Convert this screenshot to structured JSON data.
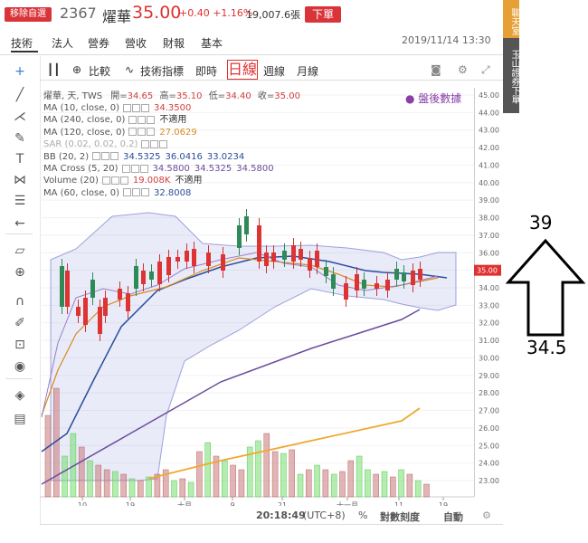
{
  "header": {
    "mode_badge": "移除自選",
    "code": "2367",
    "name": "燿華",
    "price": "35.00",
    "change": "+0.40 +1.16%",
    "volume": "19,007.6張",
    "order_button": "下單",
    "datetime": "2019/11/14 13:30"
  },
  "nav": {
    "tabs": [
      "技術",
      "法人",
      "營券",
      "營收",
      "財報",
      "基本"
    ],
    "active": "技術"
  },
  "toolbar": {
    "compare": "比較",
    "indicators": "技術指標",
    "realtime": "即時",
    "daily": "日線",
    "weekly": "週線",
    "monthly": "月線"
  },
  "legend": {
    "ohlc_label": "燿華, 天, TWS",
    "open_label": "開=",
    "open": "34.65",
    "high_label": "高=",
    "high": "35.10",
    "low_label": "低=",
    "low": "34.40",
    "close_label": "收=",
    "close": "35.00",
    "rows": [
      {
        "label": "MA (10, close, 0)",
        "values": [
          "34.3500"
        ],
        "color": "#d04040"
      },
      {
        "label": "MA (240, close, 0)",
        "values": [
          "不適用"
        ],
        "color": "#333333"
      },
      {
        "label": "MA (120, close, 0)",
        "values": [
          "27.0629"
        ],
        "color": "#d98a20"
      },
      {
        "label": "SAR (0.02, 0.02, 0.2)",
        "values": [],
        "color": "#aaaaaa"
      },
      {
        "label": "BB (20, 2)",
        "values": [
          "34.5325",
          "36.0416",
          "33.0234"
        ],
        "color": "#2a4d9c"
      },
      {
        "label": "MA Cross (5, 20)",
        "values": [
          "34.5800",
          "34.5325",
          "34.5800"
        ],
        "color": "#6a4c9c"
      },
      {
        "label": "Volume (20)",
        "values": [
          "19.008K",
          "不適用"
        ],
        "color": "#d04040"
      },
      {
        "label": "MA (60, close, 0)",
        "values": [
          "32.8008"
        ],
        "color": "#2a4d9c"
      }
    ],
    "after_hours": "盤後數據"
  },
  "axis": {
    "y_ticks": [
      "45.00",
      "44.00",
      "43.00",
      "42.00",
      "41.00",
      "40.00",
      "39.00",
      "38.00",
      "37.00",
      "36.00",
      "35.00",
      "34.00",
      "33.00",
      "32.00",
      "31.00",
      "30.00",
      "29.00",
      "28.00",
      "27.00",
      "26.00",
      "25.00",
      "24.00",
      "23.00"
    ],
    "x_ticks": [
      "10",
      "19",
      "十月",
      "9",
      "21",
      "十一月",
      "11",
      "19"
    ],
    "price_tag": "35.00"
  },
  "status": {
    "time": "20:18:49",
    "tz": "(UTC+8)",
    "pct": "%",
    "log": "對數刻度",
    "auto": "自動"
  },
  "side": {
    "btn1": "聊天室",
    "btn2": "玉山證券下單"
  },
  "annotation": {
    "top": "39",
    "bottom": "34.5"
  }
}
